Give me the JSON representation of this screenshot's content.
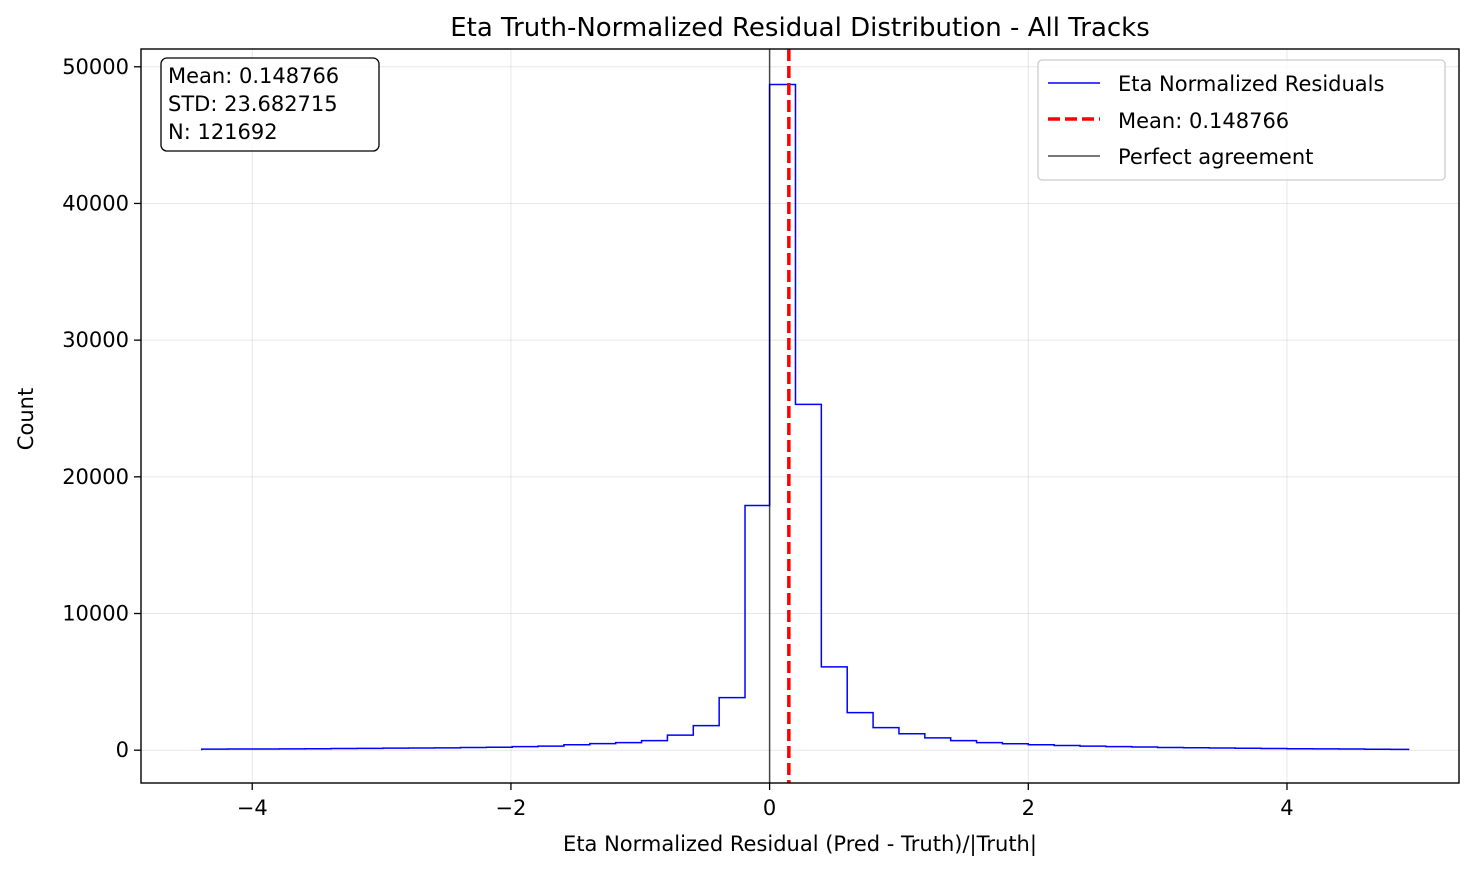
{
  "chart_data": {
    "type": "histogram",
    "title": "Eta Truth-Normalized Residual Distribution - All Tracks",
    "xlabel": "Eta Normalized Residual (Pred - Truth)/|Truth|",
    "ylabel": "Count",
    "xlim": [
      -4.86,
      5.33
    ],
    "ylim": [
      -2400,
      51300
    ],
    "xticks": [
      -4,
      -2,
      0,
      2,
      4
    ],
    "xtick_labels": [
      "−4",
      "−2",
      "0",
      "2",
      "4"
    ],
    "yticks": [
      0,
      10000,
      20000,
      30000,
      40000,
      50000
    ],
    "ytick_labels": [
      "0",
      "10000",
      "20000",
      "30000",
      "40000",
      "50000"
    ],
    "grid": true,
    "legend_position": "upper right",
    "series": [
      {
        "name": "Eta Normalized Residuals",
        "color": "#0000ff",
        "style": "step",
        "bin_edges": [
          -4.39,
          -4.19,
          -3.99,
          -3.79,
          -3.59,
          -3.39,
          -3.19,
          -2.99,
          -2.79,
          -2.59,
          -2.39,
          -2.19,
          -1.99,
          -1.79,
          -1.59,
          -1.39,
          -1.19,
          -0.99,
          -0.79,
          -0.59,
          -0.39,
          -0.19,
          0.0,
          0.2,
          0.4,
          0.6,
          0.8,
          1.0,
          1.2,
          1.4,
          1.6,
          1.8,
          2.0,
          2.2,
          2.4,
          2.6,
          2.8,
          3.0,
          3.2,
          3.4,
          3.6,
          3.8,
          4.0,
          4.2,
          4.4,
          4.6,
          4.8,
          4.94
        ],
        "counts": [
          80,
          90,
          90,
          100,
          110,
          120,
          130,
          150,
          160,
          170,
          200,
          220,
          260,
          300,
          400,
          480,
          550,
          700,
          1100,
          1800,
          3850,
          17900,
          48700,
          25300,
          6100,
          2750,
          1650,
          1200,
          900,
          700,
          550,
          470,
          400,
          340,
          300,
          260,
          230,
          200,
          180,
          160,
          140,
          120,
          110,
          100,
          90,
          70,
          60
        ]
      }
    ],
    "vlines": [
      {
        "name": "Mean: 0.148766",
        "x": 0.148766,
        "color": "#ff0000",
        "style": "dashed"
      },
      {
        "name": "Perfect agreement",
        "x": 0,
        "color": "#000000",
        "style": "solid"
      }
    ],
    "stats_box": {
      "lines": [
        "Mean: 0.148766",
        "STD: 23.682715",
        "N: 121692"
      ]
    }
  }
}
